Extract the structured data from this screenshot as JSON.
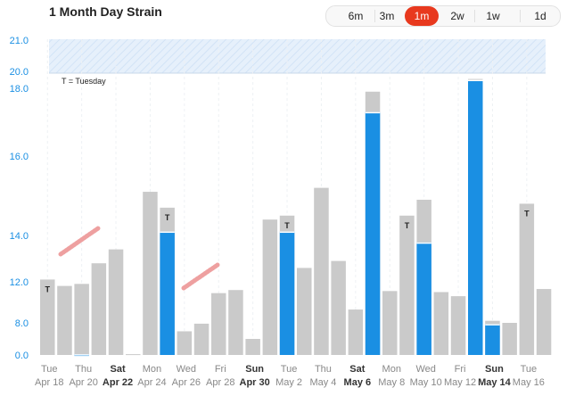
{
  "header": {
    "title": "1 Month Day Strain",
    "ranges": [
      {
        "label": "6m",
        "active": false
      },
      {
        "label": "3m",
        "active": false
      },
      {
        "label": "1m",
        "active": true
      },
      {
        "label": "2w",
        "active": false
      },
      {
        "label": "1w",
        "active": false
      },
      {
        "label": "1d",
        "active": false
      }
    ]
  },
  "chart_data": {
    "type": "bar",
    "title": "1 Month Day Strain",
    "annotation": "T = Tuesday",
    "marker_label": "T",
    "y_ticks": [
      0.0,
      8.0,
      12.0,
      14.0,
      16.0,
      18.0,
      20.0,
      21.0
    ],
    "y_tick_labels": [
      "0.0",
      "8.0",
      "12.0",
      "14.0",
      "16.0",
      "18.0",
      "20.0",
      "21.0"
    ],
    "x_labels": [
      {
        "day": "Tue",
        "date": "Apr 18",
        "bold": false
      },
      {
        "day": "Thu",
        "date": "Apr 20",
        "bold": false
      },
      {
        "day": "Sat",
        "date": "Apr 22",
        "bold": true
      },
      {
        "day": "Mon",
        "date": "Apr 24",
        "bold": false
      },
      {
        "day": "Wed",
        "date": "Apr 26",
        "bold": false
      },
      {
        "day": "Fri",
        "date": "Apr 28",
        "bold": false
      },
      {
        "day": "Sun",
        "date": "Apr 30",
        "bold": true
      },
      {
        "day": "Tue",
        "date": "May 2",
        "bold": false
      },
      {
        "day": "Thu",
        "date": "May 4",
        "bold": false
      },
      {
        "day": "Sat",
        "date": "May 6",
        "bold": true
      },
      {
        "day": "Mon",
        "date": "May 8",
        "bold": false
      },
      {
        "day": "Wed",
        "date": "May 10",
        "bold": false
      },
      {
        "day": "Fri",
        "date": "May 12",
        "bold": false
      },
      {
        "day": "Sun",
        "date": "May 14",
        "bold": true
      },
      {
        "day": "Tue",
        "date": "May 16",
        "bold": false
      }
    ],
    "series": [
      {
        "values": [
          12.1,
          11.6,
          11.8,
          12.8,
          13.4,
          0.2,
          15.1,
          14.7,
          5.9,
          7.8,
          10.9,
          11.2,
          4.0,
          14.4,
          14.5,
          12.6,
          15.2,
          12.9,
          9.3,
          17.9,
          11.1,
          14.5,
          14.9,
          11.0,
          10.6,
          19.1,
          8.2,
          8.0,
          14.8,
          11.3
        ]
      },
      {
        "values": [
          0.0,
          0.0,
          0.2,
          0.0,
          0.0,
          0.0,
          0.0,
          14.1,
          0.0,
          0.0,
          0.0,
          0.0,
          0.0,
          0.0,
          14.1,
          0.0,
          0.0,
          0.0,
          0.0,
          17.3,
          0.0,
          0.0,
          13.7,
          0.0,
          0.0,
          19.0,
          7.7,
          0.0,
          0.0,
          0.0
        ]
      }
    ],
    "tuesday_markers": [
      0,
      14,
      28
    ],
    "band": [
      20.0,
      21.0
    ],
    "colors": {
      "bar": "#cacaca",
      "highlight": "#1a8fe3",
      "band": "#e6f0fb",
      "strike": "#ee9a9a",
      "tick": "#1a8fe3"
    }
  }
}
